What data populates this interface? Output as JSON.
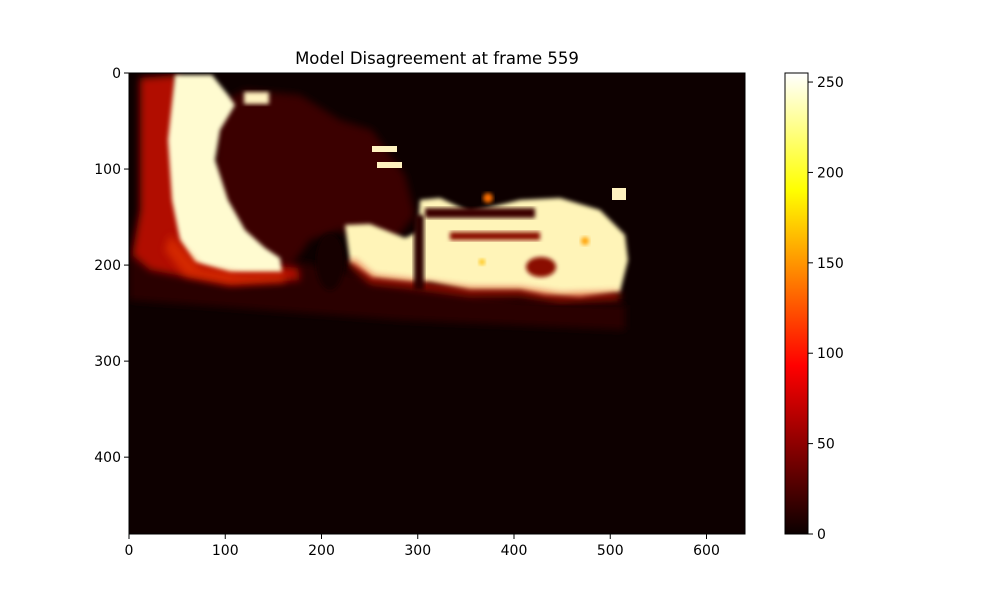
{
  "chart_data": {
    "type": "heatmap",
    "title": "Model Disagreement at frame 559",
    "xlabel": "",
    "ylabel": "",
    "colormap": "hot",
    "image_width": 640,
    "image_height": 480,
    "xlim": [
      0,
      640
    ],
    "ylim": [
      480,
      0
    ],
    "x_ticks": [
      0,
      100,
      200,
      300,
      400,
      500,
      600
    ],
    "y_ticks": [
      0,
      100,
      200,
      300,
      400
    ],
    "colorbar": {
      "range": [
        0,
        255
      ],
      "ticks": [
        0,
        50,
        100,
        150,
        200,
        250
      ]
    },
    "grid": false,
    "description_values": {
      "background_level": 8,
      "high_region_level": 250,
      "transition_level": 60
    }
  }
}
